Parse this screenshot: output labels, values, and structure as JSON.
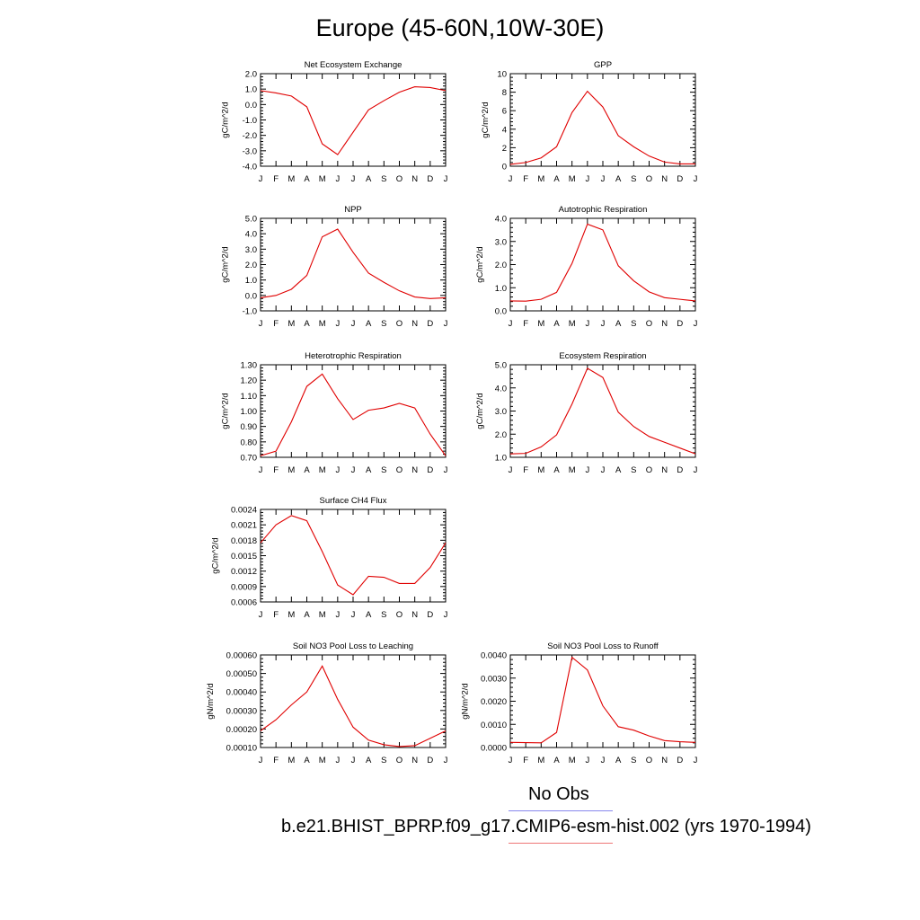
{
  "title": "Europe (45-60N,10W-30E)",
  "months": [
    "J",
    "F",
    "M",
    "A",
    "M",
    "J",
    "J",
    "A",
    "S",
    "O",
    "N",
    "D",
    "J"
  ],
  "legend": {
    "obs_label": "No Obs",
    "obs_color": "#8888ee",
    "model_label": "b.e21.BHIST_BPRP.f09_g17.CMIP6-esm-hist.002 (yrs 1970-1994)",
    "model_color": "#ee7777"
  },
  "line_color": "#e00000",
  "chart_data": [
    {
      "type": "line",
      "title": "Net Ecosystem Exchange",
      "ylabel": "gC/m^2/d",
      "ylim": [
        -4,
        2
      ],
      "yticks": [
        "-4.0",
        "-3.0",
        "-2.0",
        "-1.0",
        "0.0",
        "1.0",
        "2.0"
      ],
      "tick_values": [
        -4,
        -3,
        -2,
        -1,
        0,
        1,
        2
      ],
      "values": [
        0.9,
        0.75,
        0.55,
        -0.15,
        -2.55,
        -3.25,
        -1.8,
        -0.35,
        0.25,
        0.8,
        1.15,
        1.1,
        0.9
      ]
    },
    {
      "type": "line",
      "title": "GPP",
      "ylabel": "gC/m^2/d",
      "ylim": [
        0,
        10
      ],
      "yticks": [
        "0",
        "2",
        "4",
        "6",
        "8",
        "10"
      ],
      "tick_values": [
        0,
        2,
        4,
        6,
        8,
        10
      ],
      "values": [
        0.2,
        0.4,
        0.9,
        2.1,
        5.8,
        8.1,
        6.4,
        3.3,
        2.1,
        1.1,
        0.45,
        0.25,
        0.25
      ]
    },
    {
      "type": "line",
      "title": "NPP",
      "ylabel": "gC/m^2/d",
      "ylim": [
        -1,
        5
      ],
      "yticks": [
        "-1.0",
        "0.0",
        "1.0",
        "2.0",
        "3.0",
        "4.0",
        "5.0"
      ],
      "tick_values": [
        -1,
        0,
        1,
        2,
        3,
        4,
        5
      ],
      "values": [
        -0.15,
        0.0,
        0.4,
        1.3,
        3.8,
        4.3,
        2.8,
        1.45,
        0.85,
        0.3,
        -0.1,
        -0.2,
        -0.15
      ]
    },
    {
      "type": "line",
      "title": "Autotrophic Respiration",
      "ylabel": "gC/m^2/d",
      "ylim": [
        0,
        4
      ],
      "yticks": [
        "0.0",
        "1.0",
        "2.0",
        "3.0",
        "4.0"
      ],
      "tick_values": [
        0,
        1,
        2,
        3,
        4
      ],
      "values": [
        0.43,
        0.42,
        0.5,
        0.8,
        2.05,
        3.75,
        3.5,
        1.95,
        1.3,
        0.82,
        0.57,
        0.5,
        0.43
      ]
    },
    {
      "type": "line",
      "title": "Heterotrophic Respiration",
      "ylabel": "gC/m^2/d",
      "ylim": [
        0.7,
        1.3
      ],
      "yticks": [
        "0.70",
        "0.80",
        "0.90",
        "1.00",
        "1.10",
        "1.20",
        "1.30"
      ],
      "tick_values": [
        0.7,
        0.8,
        0.9,
        1.0,
        1.1,
        1.2,
        1.3
      ],
      "values": [
        0.71,
        0.74,
        0.93,
        1.16,
        1.24,
        1.08,
        0.945,
        1.005,
        1.02,
        1.05,
        1.02,
        0.85,
        0.71
      ]
    },
    {
      "type": "line",
      "title": "Ecosystem Respiration",
      "ylabel": "gC/m^2/d",
      "ylim": [
        1,
        5
      ],
      "yticks": [
        "1.0",
        "2.0",
        "3.0",
        "4.0",
        "5.0"
      ],
      "tick_values": [
        1,
        2,
        3,
        4,
        5
      ],
      "values": [
        1.15,
        1.17,
        1.45,
        1.97,
        3.3,
        4.85,
        4.45,
        2.95,
        2.33,
        1.9,
        1.65,
        1.4,
        1.15
      ]
    },
    {
      "type": "line",
      "title": "Surface CH4 Flux",
      "ylabel": "gC/m^2/d",
      "ylim": [
        0.0006,
        0.0024
      ],
      "yticks": [
        "0.0006",
        "0.0009",
        "0.0012",
        "0.0015",
        "0.0018",
        "0.0021",
        "0.0024"
      ],
      "tick_values": [
        0.0006,
        0.0009,
        0.0012,
        0.0015,
        0.0018,
        0.0021,
        0.0024
      ],
      "values": [
        0.00175,
        0.0021,
        0.00228,
        0.00218,
        0.00158,
        0.00093,
        0.00074,
        0.0011,
        0.00108,
        0.00096,
        0.00096,
        0.00127,
        0.00175
      ]
    },
    {
      "type": "line",
      "title": "Soil NO3 Pool Loss to Leaching",
      "ylabel": "gN/m^2/d",
      "ylim": [
        0.0001,
        0.0006
      ],
      "yticks": [
        "0.00010",
        "0.00020",
        "0.00030",
        "0.00040",
        "0.00050",
        "0.00060"
      ],
      "tick_values": [
        0.0001,
        0.0002,
        0.0003,
        0.0004,
        0.0005,
        0.0006
      ],
      "values": [
        0.00019,
        0.00025,
        0.00033,
        0.0004,
        0.00054,
        0.00036,
        0.00021,
        0.00014,
        0.000115,
        0.000105,
        0.00011,
        0.00015,
        0.00019
      ]
    },
    {
      "type": "line",
      "title": "Soil NO3 Pool Loss to Runoff",
      "ylabel": "gN/m^2/d",
      "ylim": [
        0,
        0.004
      ],
      "yticks": [
        "0.0000",
        "0.0010",
        "0.0020",
        "0.0030",
        "0.0040"
      ],
      "tick_values": [
        0,
        0.001,
        0.002,
        0.003,
        0.004
      ],
      "values": [
        0.00022,
        0.00021,
        0.0002,
        0.00065,
        0.0039,
        0.00335,
        0.0018,
        0.0009,
        0.00075,
        0.0005,
        0.0003,
        0.00025,
        0.00022
      ]
    }
  ]
}
